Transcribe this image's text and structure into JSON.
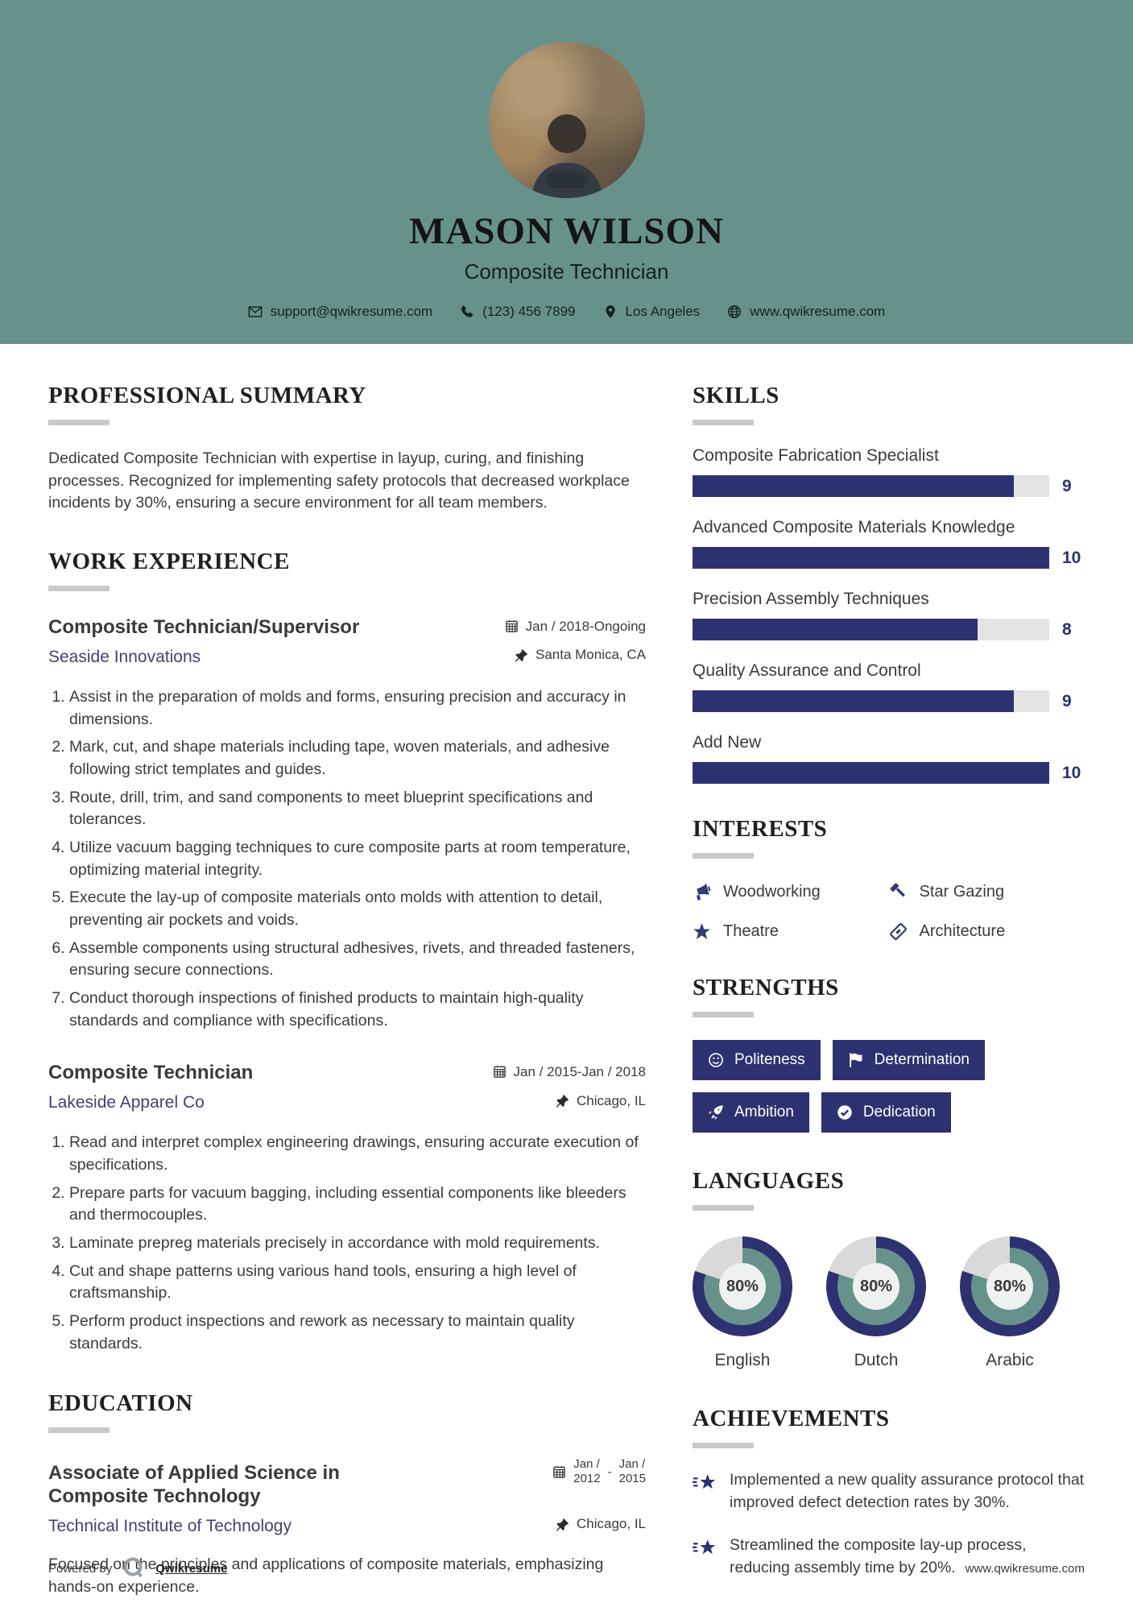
{
  "colors": {
    "header_bg": "#67928c",
    "accent_navy": "#2e3170",
    "ring_gray": "#d9d9d9",
    "track_gray": "#e3e3e3"
  },
  "header": {
    "name": "MASON WILSON",
    "title": "Composite Technician",
    "contact": [
      {
        "icon": "email-icon",
        "text": "support@qwikresume.com"
      },
      {
        "icon": "phone-icon",
        "text": "(123) 456 7899"
      },
      {
        "icon": "location-icon",
        "text": "Los Angeles"
      },
      {
        "icon": "globe-icon",
        "text": "www.qwikresume.com"
      }
    ]
  },
  "summary": {
    "heading": "PROFESSIONAL SUMMARY",
    "text": "Dedicated Composite Technician with expertise in layup, curing, and finishing processes. Recognized for implementing safety protocols that decreased workplace incidents by 30%, ensuring a secure environment for all team members."
  },
  "experience": {
    "heading": "WORK EXPERIENCE",
    "jobs": [
      {
        "title": "Composite Technician/Supervisor",
        "company": "Seaside Innovations",
        "date": "Jan / 2018-Ongoing",
        "location": "Santa Monica, CA",
        "bullets": [
          "Assist in the preparation of molds and forms, ensuring precision and accuracy in dimensions.",
          "Mark, cut, and shape materials including tape, woven materials, and adhesive following strict templates and guides.",
          "Route, drill, trim, and sand components to meet blueprint specifications and tolerances.",
          "Utilize vacuum bagging techniques to cure composite parts at room temperature, optimizing material integrity.",
          "Execute the lay-up of composite materials onto molds with attention to detail, preventing air pockets and voids.",
          "Assemble components using structural adhesives, rivets, and threaded fasteners, ensuring secure connections.",
          "Conduct thorough inspections of finished products to maintain high-quality standards and compliance with specifications."
        ]
      },
      {
        "title": "Composite Technician",
        "company": "Lakeside Apparel Co",
        "date": "Jan / 2015-Jan / 2018",
        "location": "Chicago, IL",
        "bullets": [
          "Read and interpret complex engineering drawings, ensuring accurate execution of specifications.",
          "Prepare parts for vacuum bagging, including essential components like bleeders and thermocouples.",
          "Laminate prepreg materials precisely in accordance with mold requirements.",
          "Cut and shape patterns using various hand tools, ensuring a high level of craftsmanship.",
          "Perform product inspections and rework as necessary to maintain quality standards."
        ]
      }
    ]
  },
  "education": {
    "heading": "EDUCATION",
    "degree": "Associate of Applied Science in Composite Technology",
    "school": "Technical Institute of Technology",
    "date_start_line1": "Jan /",
    "date_start_line2": "2012",
    "date_separator": "-",
    "date_end_line1": "Jan /",
    "date_end_line2": "2015",
    "location": "Chicago, IL",
    "description": "Focused on the principles and applications of composite materials, emphasizing hands-on experience."
  },
  "skills": {
    "heading": "SKILLS",
    "max": 10,
    "items": [
      {
        "name": "Composite Fabrication Specialist",
        "value": 9
      },
      {
        "name": "Advanced Composite Materials Knowledge",
        "value": 10
      },
      {
        "name": "Precision Assembly Techniques",
        "value": 8
      },
      {
        "name": "Quality Assurance and Control",
        "value": 9
      },
      {
        "name": "Add New",
        "value": 10
      }
    ]
  },
  "interests": {
    "heading": "INTERESTS",
    "items": [
      {
        "icon": "megaphone-icon",
        "label": "Woodworking"
      },
      {
        "icon": "gavel-icon",
        "label": "Star Gazing"
      },
      {
        "icon": "star-icon",
        "label": "Theatre"
      },
      {
        "icon": "stamp-icon",
        "label": "Architecture"
      }
    ]
  },
  "strengths": {
    "heading": "STRENGTHS",
    "items": [
      {
        "icon": "smiley-icon",
        "label": "Politeness"
      },
      {
        "icon": "flag-icon",
        "label": "Determination"
      },
      {
        "icon": "rocket-icon",
        "label": "Ambition"
      },
      {
        "icon": "check-circle-icon",
        "label": "Dedication"
      }
    ]
  },
  "languages": {
    "heading": "LANGUAGES",
    "items": [
      {
        "label": "English",
        "percent": 80,
        "display": "80%"
      },
      {
        "label": "Dutch",
        "percent": 80,
        "display": "80%"
      },
      {
        "label": "Arabic",
        "percent": 80,
        "display": "80%"
      }
    ]
  },
  "achievements": {
    "heading": "ACHIEVEMENTS",
    "items": [
      {
        "text": "Implemented a new quality assurance protocol that improved defect detection rates by 30%."
      },
      {
        "text": "Streamlined the composite lay-up process, reducing assembly time by 20%."
      }
    ]
  },
  "footer": {
    "powered_by": "Powered by",
    "brand": "Qwikresume",
    "website": "www.qwikresume.com"
  }
}
